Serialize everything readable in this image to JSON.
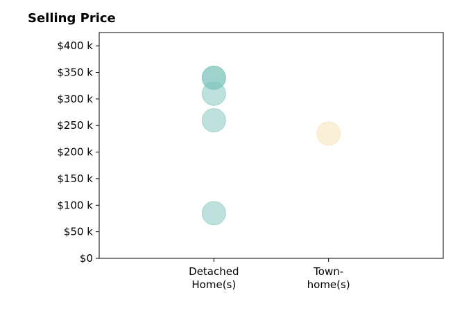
{
  "chart_data": {
    "type": "scatter",
    "title": "Selling Price",
    "xlabel": "",
    "ylabel": "",
    "categories": [
      {
        "lines": [
          "Detached",
          "Home(s)"
        ]
      },
      {
        "lines": [
          "Town-",
          "home(s)"
        ]
      }
    ],
    "category_positions": [
      1,
      2
    ],
    "xlim": [
      0,
      3
    ],
    "ylim": [
      0,
      425
    ],
    "yticks": [
      0,
      50,
      100,
      150,
      200,
      250,
      300,
      350,
      400
    ],
    "ytick_labels": [
      "$0",
      "$50 k",
      "$100 k",
      "$150 k",
      "$200 k",
      "$250 k",
      "$300 k",
      "$350 k",
      "$400 k"
    ],
    "series": [
      {
        "color": "#7ec4bc",
        "points": [
          {
            "x": 1,
            "y": 340
          },
          {
            "x": 1,
            "y": 340
          },
          {
            "x": 1,
            "y": 310
          },
          {
            "x": 1,
            "y": 260
          },
          {
            "x": 1,
            "y": 85
          }
        ]
      },
      {
        "color": "#f5dfb0",
        "points": [
          {
            "x": 2,
            "y": 235
          }
        ]
      }
    ],
    "grid": false,
    "legend": "none"
  }
}
